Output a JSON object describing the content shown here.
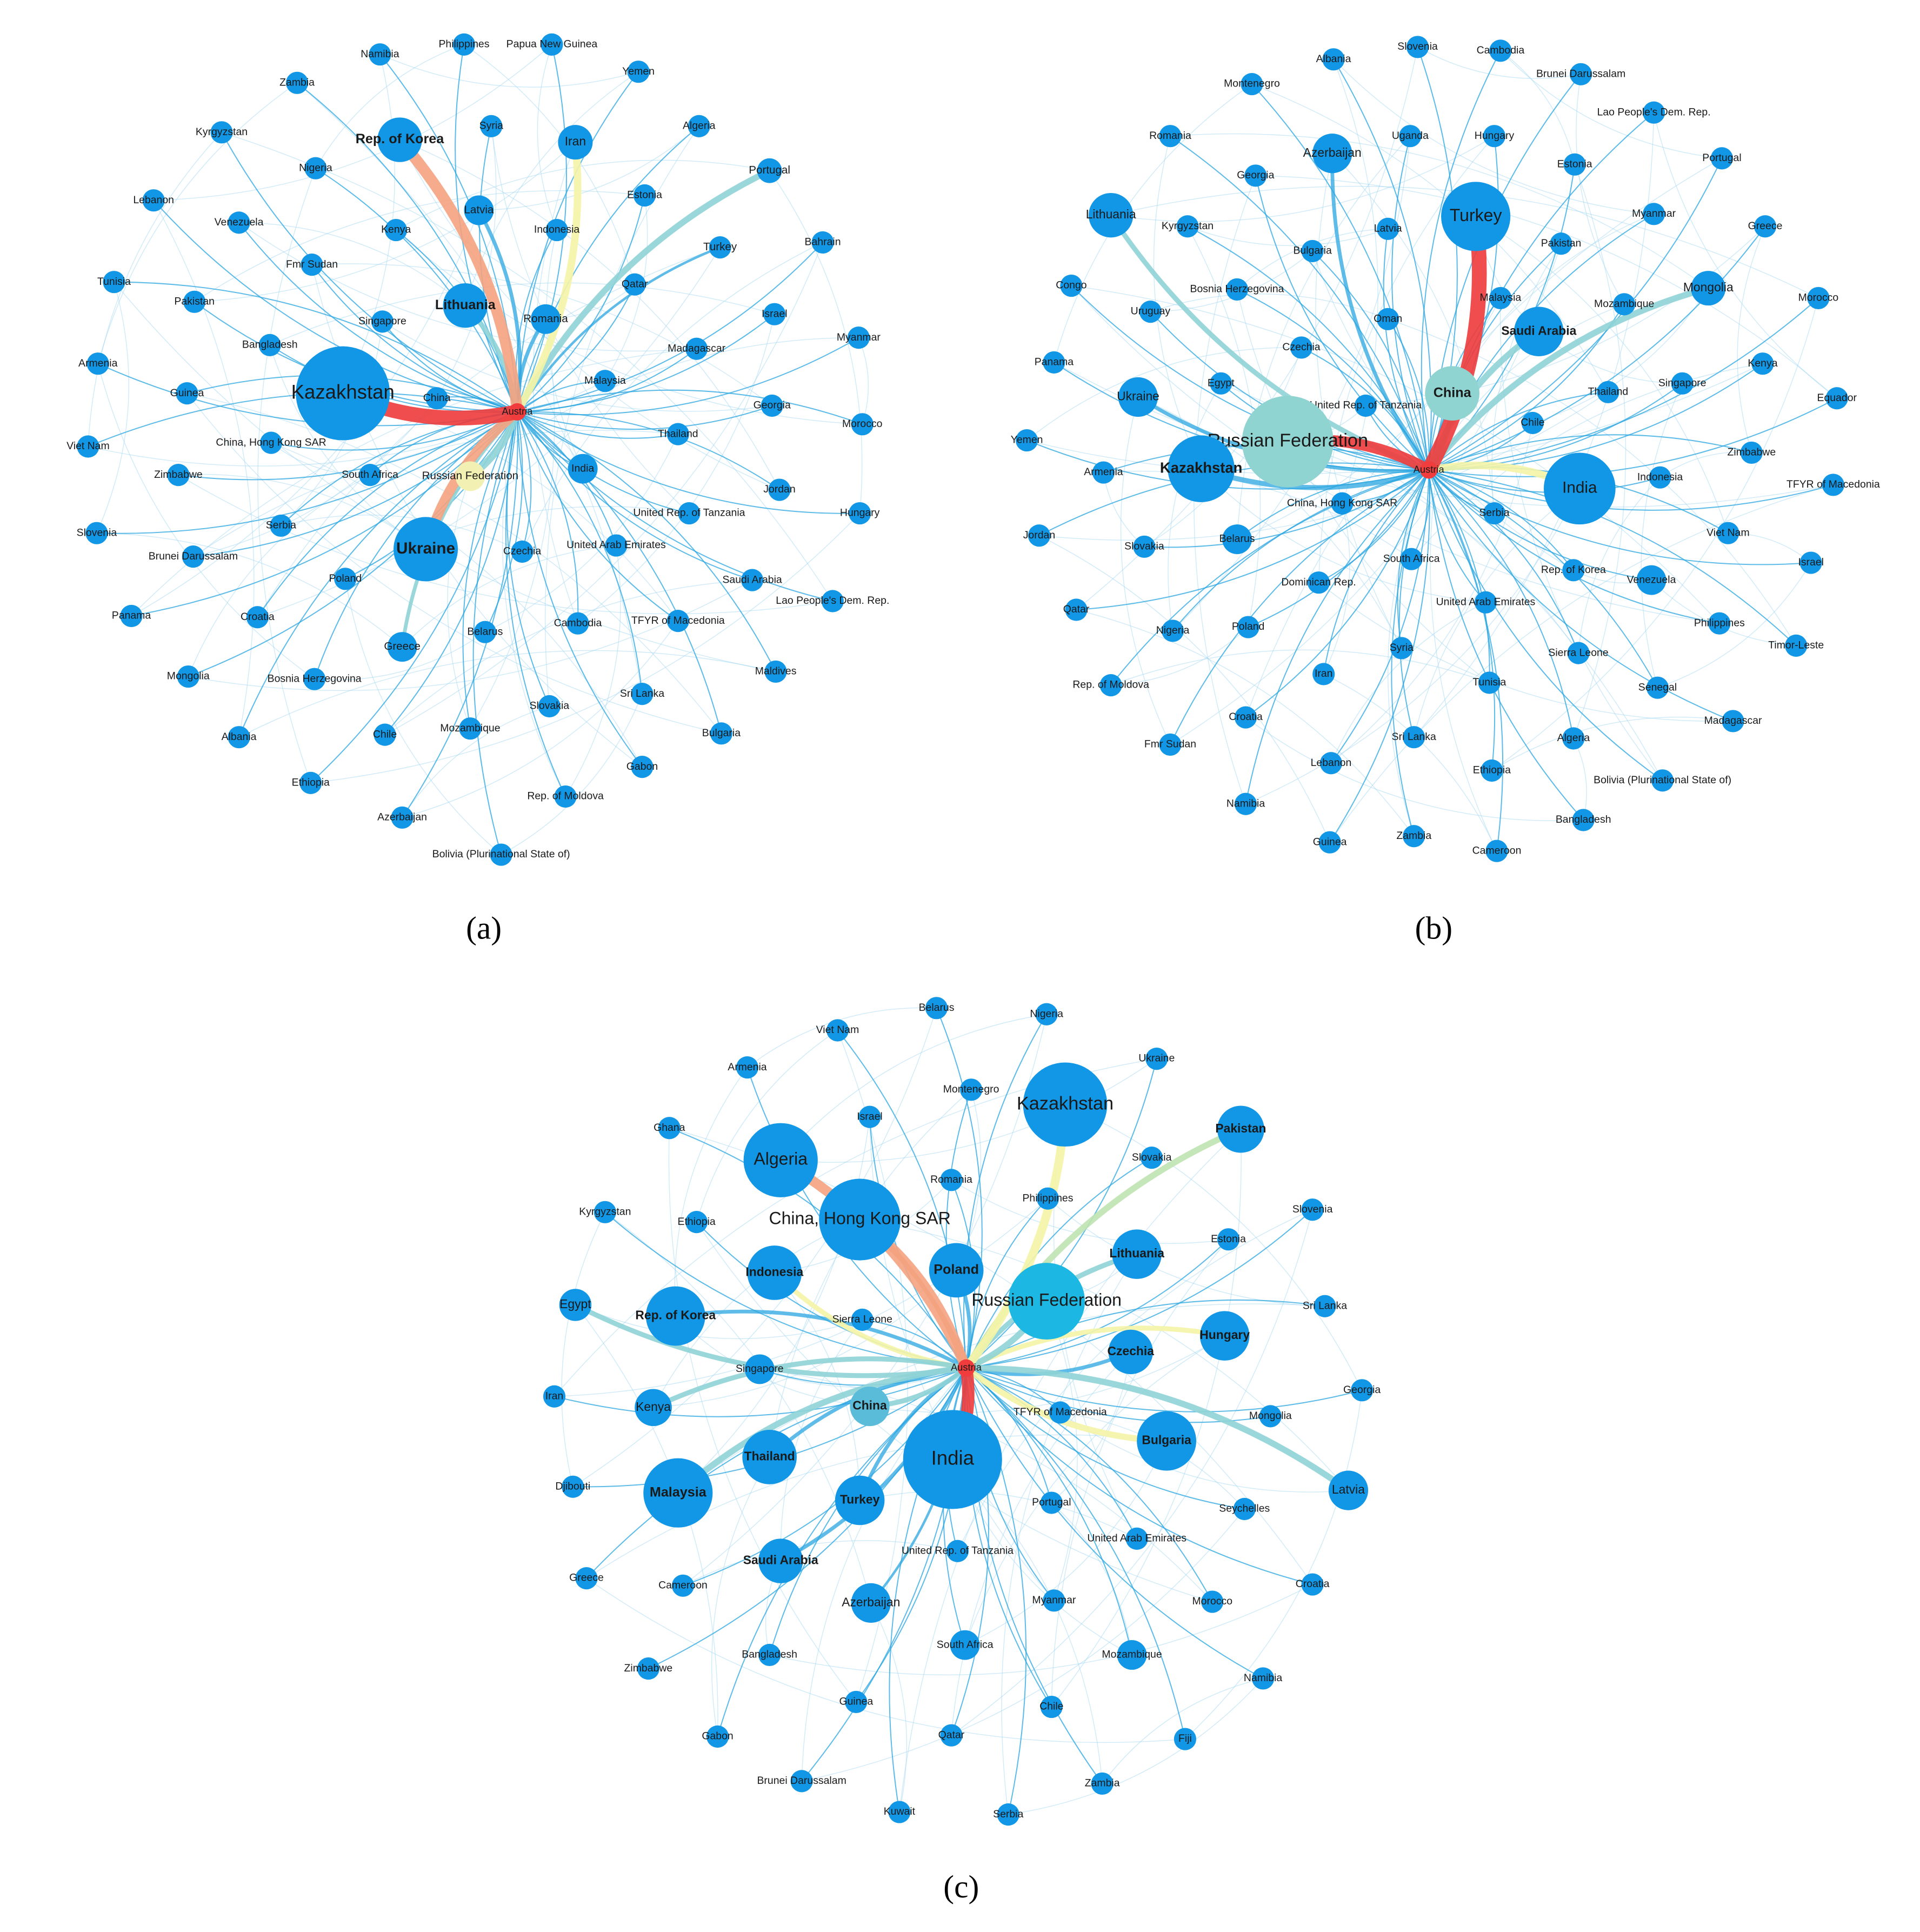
{
  "panels": [
    {
      "label": "(a)",
      "nodes": [
        "Namibia",
        "Philippines",
        "Papua New Guinea",
        "Yemen",
        "Zambia",
        "Kyrgyzstan",
        "Rep. of Korea",
        "Syria",
        "Iran",
        "Algeria",
        "Nigeria",
        "Lebanon",
        "Latvia",
        "Portugal",
        "Estonia",
        "Venezuela",
        "Kenya",
        "Indonesia",
        "Bahrain",
        "Turkey",
        "Tunisia",
        "Fmr Sudan",
        "Qatar",
        "Pakistan",
        "Lithuania",
        "Romania",
        "Israel",
        "Singapore",
        "Myanmar",
        "Bangladesh",
        "Madagascar",
        "Armenia",
        "Guinea",
        "Kazakhstan",
        "China",
        "Malaysia",
        "Georgia",
        "Morocco",
        "Viet Nam",
        "China, Hong Kong SAR",
        "Thailand",
        "Zimbabwe",
        "South Africa",
        "Russian Federation",
        "India",
        "Jordan",
        "Hungary",
        "Slovenia",
        "Serbia",
        "Brunei Darussalam",
        "Ukraine",
        "Czechia",
        "United Rep. of Tanzania",
        "United Arab Emirates",
        "Saudi Arabia",
        "Poland",
        "Lao People's Dem. Rep.",
        "Panama",
        "Croatia",
        "Cambodia",
        "TFYR of Macedonia",
        "Belarus",
        "Greece",
        "Mongolia",
        "Bosnia Herzegovina",
        "Maldives",
        "Slovakia",
        "Sri Lanka",
        "Albania",
        "Chile",
        "Mozambique",
        "Bulgaria",
        "Gabon",
        "Ethiopia",
        "Rep. of Moldova",
        "Azerbaijan",
        "Bolivia (Plurinational State of)",
        "Austria"
      ]
    },
    {
      "label": "(b)",
      "nodes": [
        "Slovenia",
        "Cambodia",
        "Albania",
        "Brunei Darussalam",
        "Montenegro",
        "Lao People's Dem. Rep.",
        "Romania",
        "Uganda",
        "Hungary",
        "Azerbaijan",
        "Portugal",
        "Georgia",
        "Estonia",
        "Lithuania",
        "Kyrgyzstan",
        "Latvia",
        "Turkey",
        "Myanmar",
        "Greece",
        "Pakistan",
        "Bulgaria",
        "Congo",
        "Bosnia Herzegovina",
        "Malaysia",
        "Mozambique",
        "Mongolia",
        "Morocco",
        "Uruguay",
        "Oman",
        "Saudi Arabia",
        "Czechia",
        "Panama",
        "Kenya",
        "Egypt",
        "Singapore",
        "Ukraine",
        "China",
        "Thailand",
        "Equador",
        "United Rep. of Tanzania",
        "Chile",
        "Yemen",
        "Russian Federation",
        "Zimbabwe",
        "Armenia",
        "Kazakhstan",
        "Indonesia",
        "India",
        "TFYR of Macedonia",
        "China, Hong Kong SAR",
        "Serbia",
        "Viet Nam",
        "Belarus",
        "Slovakia",
        "Jordan",
        "South Africa",
        "Israel",
        "Rep. of Korea",
        "Venezuela",
        "Dominican Rep.",
        "United Arab Emirates",
        "Qatar",
        "Nigeria",
        "Poland",
        "Philippines",
        "Timor-Leste",
        "Syria",
        "Sierra Leone",
        "Iran",
        "Senegal",
        "Rep. of Moldova",
        "Tunisia",
        "Madagascar",
        "Croatia",
        "Sri Lanka",
        "Algeria",
        "Fmr Sudan",
        "Ethiopia",
        "Bolivia (Plurinational State of)",
        "Lebanon",
        "Namibia",
        "Guinea",
        "Zambia",
        "Cameroon",
        "Bangladesh",
        "Austria"
      ]
    },
    {
      "label": "(c)",
      "nodes": [
        "Belarus",
        "Nigeria",
        "Viet Nam",
        "Armenia",
        "Ukraine",
        "Montenegro",
        "Kazakhstan",
        "Israel",
        "Ghana",
        "Pakistan",
        "Algeria",
        "Slovakia",
        "Romania",
        "Philippines",
        "China, Hong Kong SAR",
        "Kyrgyzstan",
        "Slovenia",
        "Ethiopia",
        "Estonia",
        "Lithuania",
        "Poland",
        "Indonesia",
        "Russian Federation",
        "Egypt",
        "Rep. of Korea",
        "Sri Lanka",
        "Sierra Leone",
        "Hungary",
        "Czechia",
        "Singapore",
        "Georgia",
        "Iran",
        "Kenya",
        "China",
        "Mongolia",
        "TFYR of Macedonia",
        "Bulgaria",
        "India",
        "Thailand",
        "Djibouti",
        "Malaysia",
        "Latvia",
        "Turkey",
        "Portugal",
        "Seychelles",
        "United Arab Emirates",
        "United Rep. of Tanzania",
        "Saudi Arabia",
        "Greece",
        "Cameroon",
        "Croatia",
        "Azerbaijan",
        "Myanmar",
        "Morocco",
        "South Africa",
        "Mozambique",
        "Bangladesh",
        "Zimbabwe",
        "Namibia",
        "Guinea",
        "Chile",
        "Qatar",
        "Gabon",
        "Fiji",
        "Zambia",
        "Brunei Darussalam",
        "Kuwait",
        "Serbia",
        "Austria"
      ]
    }
  ]
}
